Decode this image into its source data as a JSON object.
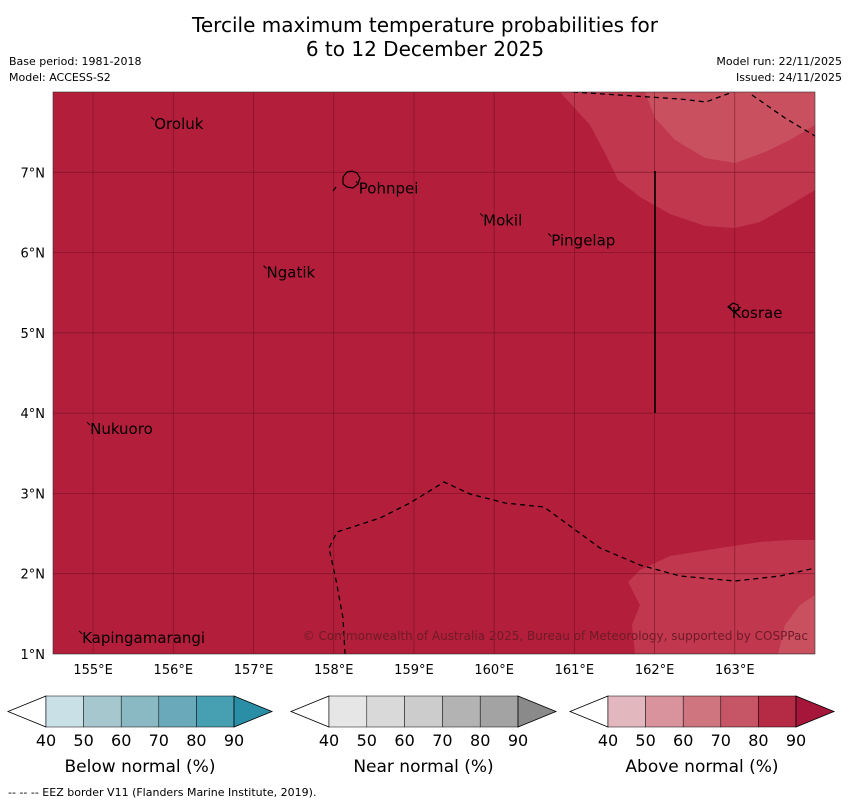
{
  "title_line1": "Tercile maximum temperature probabilities for",
  "title_line2": "6 to 12 December 2025",
  "base_period": "Base period: 1981-2018",
  "model": "Model: ACCESS-S2",
  "model_run": "Model run: 22/11/2025",
  "issued": "Issued: 24/11/2025",
  "copyright": "© Commonwealth of Australia 2025, Bureau of Meteorology, supported by COSPPac",
  "footer_note": "--  --  -- EEZ border V11 (Flanders Marine Institute, 2019).",
  "map": {
    "lon_range": [
      154.5,
      164.0
    ],
    "lat_range": [
      1.0,
      8.0
    ],
    "x_ticks": [
      {
        "value": 155,
        "label": "155°E"
      },
      {
        "value": 156,
        "label": "156°E"
      },
      {
        "value": 157,
        "label": "157°E"
      },
      {
        "value": 158,
        "label": "158°E"
      },
      {
        "value": 159,
        "label": "159°E"
      },
      {
        "value": 160,
        "label": "160°E"
      },
      {
        "value": 161,
        "label": "161°E"
      },
      {
        "value": 162,
        "label": "162°E"
      },
      {
        "value": 163,
        "label": "163°E"
      }
    ],
    "y_ticks": [
      {
        "value": 1,
        "label": "1°N"
      },
      {
        "value": 2,
        "label": "2°N"
      },
      {
        "value": 3,
        "label": "3°N"
      },
      {
        "value": 4,
        "label": "4°N"
      },
      {
        "value": 5,
        "label": "5°N"
      },
      {
        "value": 6,
        "label": "6°N"
      },
      {
        "value": 7,
        "label": "7°N"
      }
    ],
    "places": [
      {
        "name": "Oroluk",
        "lon": 155.75,
        "lat": 7.65
      },
      {
        "name": "Pohnpei",
        "lon": 158.3,
        "lat": 6.85
      },
      {
        "name": "Mokil",
        "lon": 159.85,
        "lat": 6.45
      },
      {
        "name": "Pingelap",
        "lon": 160.7,
        "lat": 6.2
      },
      {
        "name": "Ngatik",
        "lon": 157.15,
        "lat": 5.8
      },
      {
        "name": "Kosrae",
        "lon": 162.95,
        "lat": 5.3
      },
      {
        "name": "Nukuoro",
        "lon": 154.95,
        "lat": 3.85
      },
      {
        "name": "Kapingamarangi",
        "lon": 154.85,
        "lat": 1.25
      }
    ],
    "colors": {
      "above_90": "#b31e3a",
      "above_80": "#c1374d",
      "above_70": "#c9505f"
    }
  },
  "colorbars": [
    {
      "name": "below",
      "title": "Below normal (%)",
      "colors": [
        "#ffffff",
        "#c9e0e7",
        "#a7c7cf",
        "#8ab8c3",
        "#69a9b9",
        "#479fb2",
        "#2a8fa6"
      ],
      "ticks": [
        "40",
        "50",
        "60",
        "70",
        "80",
        "90"
      ]
    },
    {
      "name": "near",
      "title": "Near normal (%)",
      "colors": [
        "#ffffff",
        "#e6e6e6",
        "#d9d9d9",
        "#cccccc",
        "#b3b3b3",
        "#a3a3a3",
        "#8a8a8a"
      ],
      "ticks": [
        "40",
        "50",
        "60",
        "70",
        "80",
        "90"
      ]
    },
    {
      "name": "above",
      "title": "Above normal (%)",
      "colors": [
        "#ffffff",
        "#e2b7be",
        "#d9939d",
        "#cf757f",
        "#c65566",
        "#b52a45",
        "#a5163a"
      ],
      "ticks": [
        "40",
        "50",
        "60",
        "70",
        "80",
        "90"
      ]
    }
  ]
}
